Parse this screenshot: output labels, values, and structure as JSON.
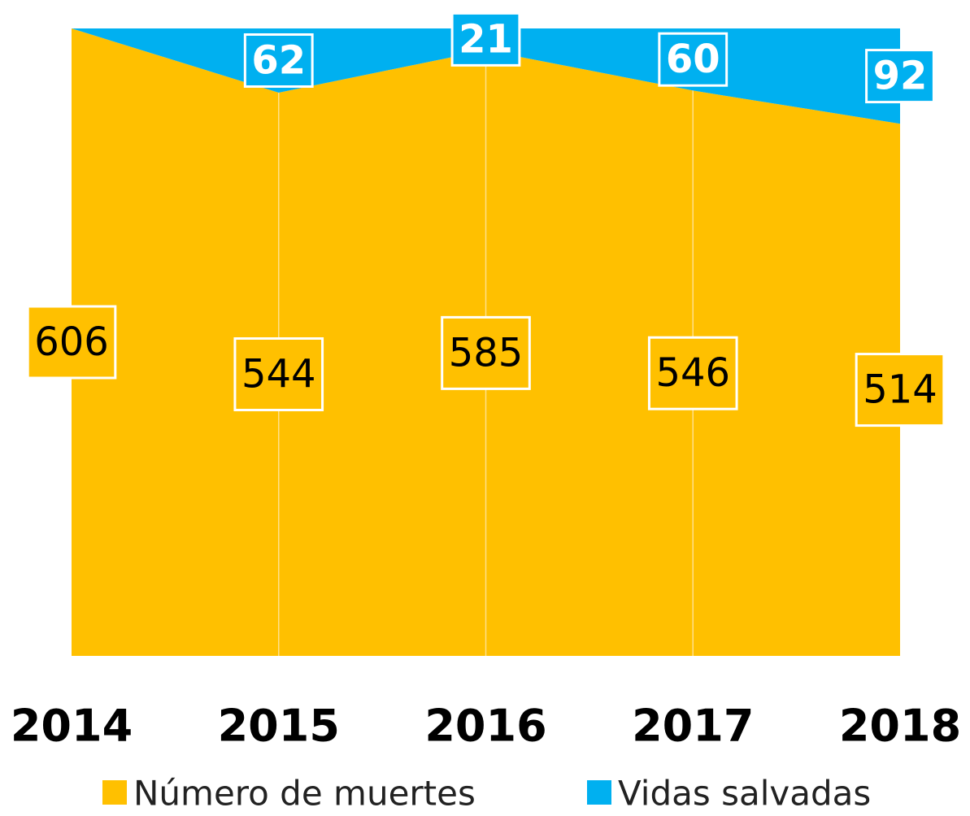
{
  "chart_data": {
    "type": "stacked-area",
    "categories": [
      "2014",
      "2015",
      "2016",
      "2017",
      "2018"
    ],
    "series": [
      {
        "name": "Número de muertes",
        "color": "#ffc000",
        "values": [
          606,
          544,
          585,
          546,
          514
        ]
      },
      {
        "name": "Vidas salvadas",
        "color": "#00b0f0",
        "values": [
          0,
          62,
          21,
          60,
          92
        ],
        "value_labels": [
          null,
          "62",
          "21",
          "60",
          "92"
        ]
      }
    ],
    "ylim": [
      0,
      606
    ],
    "grid": true,
    "legend": "bottom"
  }
}
